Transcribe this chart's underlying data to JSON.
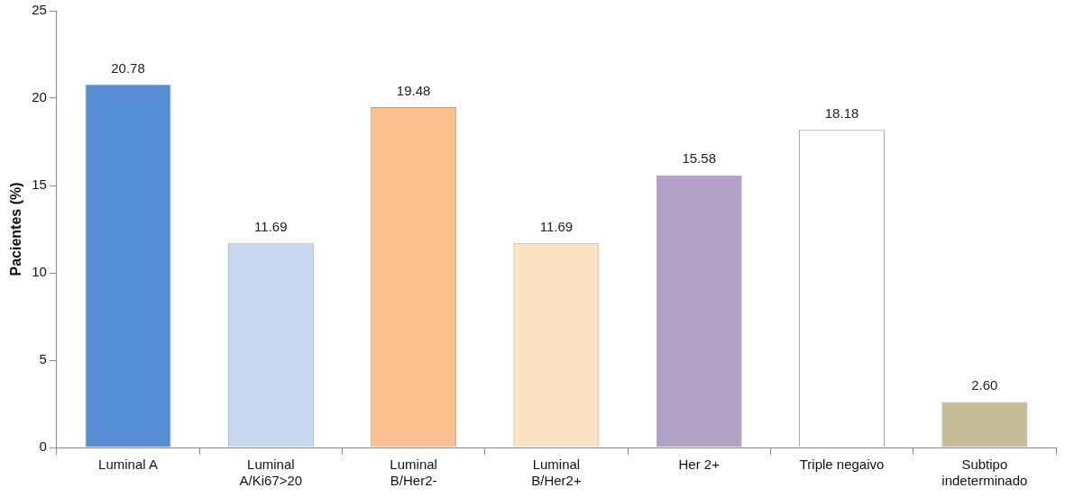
{
  "chart_data": {
    "type": "bar",
    "ylabel": "Pacientes (%)",
    "categories": [
      "Luminal A",
      "Luminal A/Ki67>20",
      "Luminal B/Her2-",
      "Luminal B/Her2+",
      "Her 2+",
      "Triple negaivo",
      "Subtipo indeterminado"
    ],
    "values": [
      20.78,
      11.69,
      19.48,
      11.69,
      15.58,
      18.18,
      2.6
    ],
    "colors": [
      "#558ed5",
      "#c6d9f1",
      "#fac090",
      "#fde2c3",
      "#b3a2c7",
      "#ffffff",
      "#c4bd97"
    ],
    "value_labels": [
      "20.78",
      "11.69",
      "19.48",
      "11.69",
      "15.58",
      "18.18",
      "2.60"
    ],
    "ylim": [
      0,
      25
    ],
    "yticks": [
      0,
      5,
      10,
      15,
      20,
      25
    ],
    "grid": false,
    "legend": false
  }
}
